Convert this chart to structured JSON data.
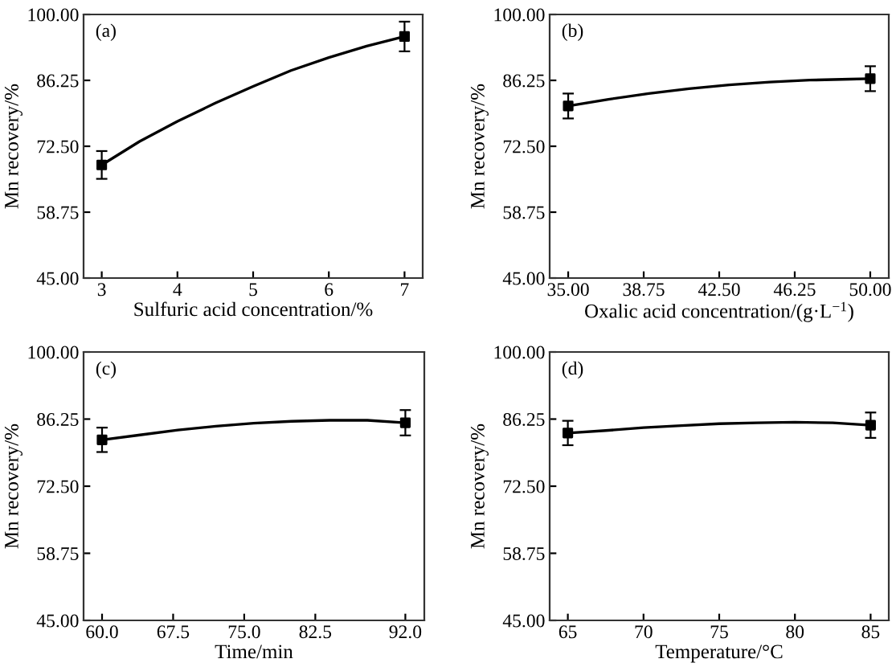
{
  "chart_data": [
    {
      "type": "line",
      "title": "(a)",
      "xlabel": "Sulfuric acid concentration/%",
      "ylabel": "Mn recovery/%",
      "xlim": [
        2.76,
        7.24
      ],
      "xticks": [
        3,
        4,
        5,
        6,
        7
      ],
      "ylim": [
        45,
        100
      ],
      "yticks": [
        {
          "value": 45,
          "label": "45.00"
        },
        {
          "value": 58.75,
          "label": "58.75"
        },
        {
          "value": 72.5,
          "label": "72.50"
        },
        {
          "value": 86.25,
          "label": "86.25"
        },
        {
          "value": 100,
          "label": "100.00"
        }
      ],
      "series": [
        {
          "color": "#000000",
          "x": [
            3,
            3.5,
            4,
            4.5,
            5,
            5.5,
            6,
            6.5,
            7
          ],
          "values": [
            68.6,
            73.5,
            77.7,
            81.5,
            85.0,
            88.3,
            91.0,
            93.4,
            95.4
          ]
        },
        {
          "type": "scatter",
          "color": "#000000",
          "marker": "square",
          "x": [
            3,
            7
          ],
          "values": [
            68.6,
            95.4
          ],
          "errors": [
            2.9,
            3.1
          ]
        }
      ]
    },
    {
      "type": "line",
      "title": "(b)",
      "xlabel": "Oxalic acid concentration/(g·L$^{−1}$)",
      "ylabel": "Mn recovery/%",
      "xlim": [
        34.08,
        50.92
      ],
      "xticks": [
        {
          "value": 35,
          "label": "35.00"
        },
        38.75,
        {
          "value": 42.5,
          "label": "42.50"
        },
        46.25,
        {
          "value": 50,
          "label": "50.00"
        }
      ],
      "ylim": [
        45,
        100
      ],
      "yticks": [
        {
          "value": 45,
          "label": "45.00"
        },
        {
          "value": 58.75,
          "label": "58.75"
        },
        {
          "value": 72.5,
          "label": "72.50"
        },
        {
          "value": 86.25,
          "label": "86.25"
        },
        {
          "value": 100,
          "label": "100.00"
        }
      ],
      "series": [
        {
          "color": "#000000",
          "x": [
            35,
            37,
            39,
            41,
            43,
            45,
            47,
            49,
            50
          ],
          "values": [
            80.9,
            82.3,
            83.5,
            84.5,
            85.3,
            85.9,
            86.3,
            86.5,
            86.6
          ]
        },
        {
          "type": "scatter",
          "color": "#000000",
          "marker": "square",
          "x": [
            35,
            50
          ],
          "values": [
            80.9,
            86.6
          ],
          "errors": [
            2.6,
            2.6
          ]
        }
      ]
    },
    {
      "type": "line",
      "title": "(c)",
      "xlabel": "Time/min",
      "ylabel": "Mn recovery/%",
      "xlim": [
        58.05,
        94.0
      ],
      "xticks": [
        {
          "value": 60,
          "label": "60.0"
        },
        67.5,
        {
          "value": 75,
          "label": "75.0"
        },
        82.5,
        {
          "value": 92,
          "label": "92.0"
        }
      ],
      "ylim": [
        45,
        100
      ],
      "yticks": [
        {
          "value": 45,
          "label": "45.00"
        },
        {
          "value": 58.75,
          "label": "58.75"
        },
        {
          "value": 72.5,
          "label": "72.50"
        },
        {
          "value": 86.25,
          "label": "86.25"
        },
        {
          "value": 100,
          "label": "100.00"
        }
      ],
      "series": [
        {
          "color": "#000000",
          "x": [
            60,
            64,
            68,
            72,
            76,
            80,
            84,
            88,
            92
          ],
          "values": [
            82.0,
            83.0,
            84.0,
            84.8,
            85.4,
            85.8,
            86.0,
            86.0,
            85.5
          ]
        },
        {
          "type": "scatter",
          "color": "#000000",
          "marker": "square",
          "x": [
            60,
            92
          ],
          "values": [
            82.0,
            85.5
          ],
          "errors": [
            2.5,
            2.6
          ]
        }
      ]
    },
    {
      "type": "line",
      "title": "(d)",
      "xlabel": "Temperature/°C",
      "ylabel": "Mn recovery/%",
      "xlim": [
        63.8,
        86.2
      ],
      "xticks": [
        65,
        70,
        75,
        80,
        85
      ],
      "ylim": [
        45,
        100
      ],
      "yticks": [
        {
          "value": 45,
          "label": "45.00"
        },
        {
          "value": 58.75,
          "label": "58.75"
        },
        {
          "value": 72.5,
          "label": "72.50"
        },
        {
          "value": 86.25,
          "label": "86.25"
        },
        {
          "value": 100,
          "label": "100.00"
        }
      ],
      "series": [
        {
          "color": "#000000",
          "x": [
            65,
            67.5,
            70,
            72.5,
            75,
            77.5,
            80,
            82.5,
            85
          ],
          "values": [
            83.4,
            83.9,
            84.5,
            84.9,
            85.3,
            85.5,
            85.6,
            85.5,
            85.0
          ]
        },
        {
          "type": "scatter",
          "color": "#000000",
          "marker": "square",
          "x": [
            65,
            85
          ],
          "values": [
            83.4,
            85.0
          ],
          "errors": [
            2.5,
            2.6
          ]
        }
      ]
    }
  ]
}
